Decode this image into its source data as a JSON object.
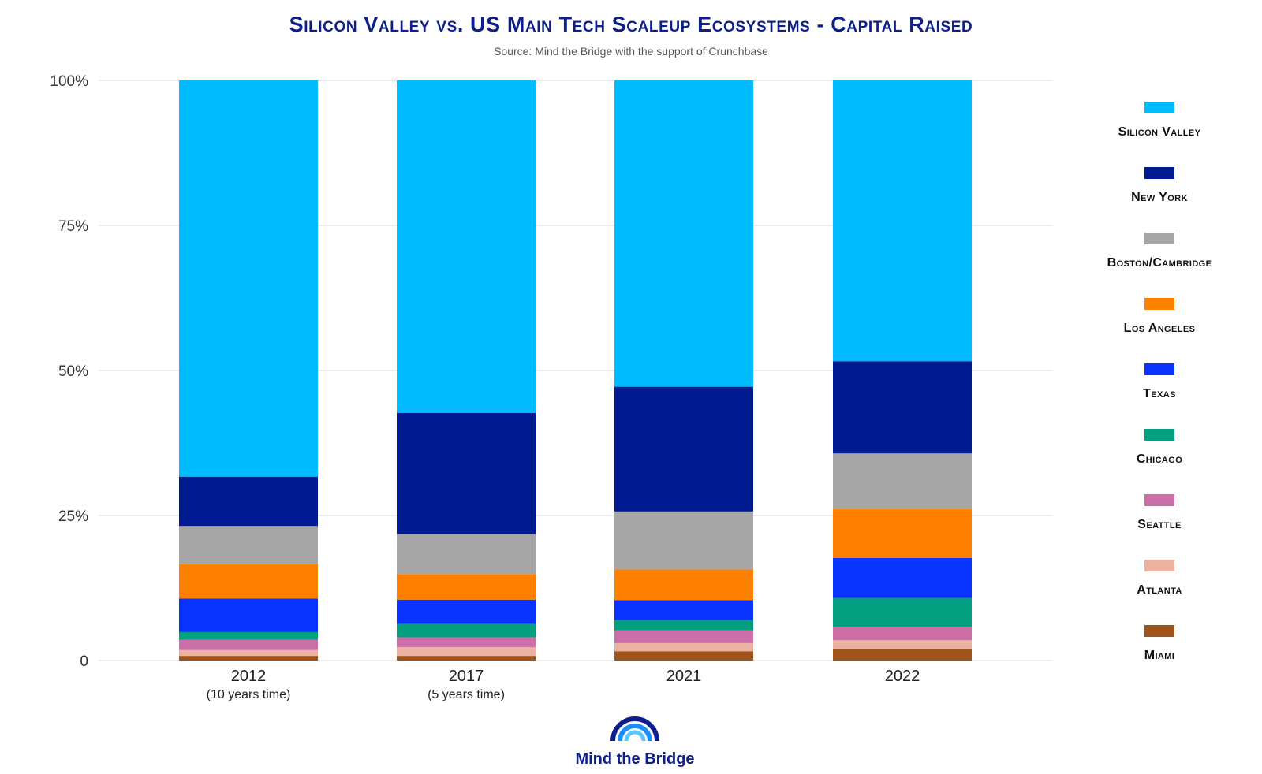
{
  "chart_data": {
    "type": "bar",
    "stacked": true,
    "title": "Silicon Valley vs. US Main Tech Scaleup Ecosystems - Capital Raised",
    "subtitle": "Source: Mind the Bridge with the support of Crunchbase",
    "categories": [
      {
        "label": "2012",
        "sublabel": "(10 years time)"
      },
      {
        "label": "2017",
        "sublabel": "(5 years time)"
      },
      {
        "label": "2021",
        "sublabel": ""
      },
      {
        "label": "2022",
        "sublabel": ""
      }
    ],
    "yticks": [
      "0",
      "25%",
      "50%",
      "75%",
      "100%"
    ],
    "ylim": [
      0,
      100
    ],
    "grid": true,
    "legend_position": "right",
    "series": [
      {
        "name": "Miami",
        "color": "#a0531d",
        "values": [
          0.8,
          0.8,
          1.6,
          2.0
        ]
      },
      {
        "name": "Atlanta",
        "color": "#ebb1a1",
        "values": [
          1.0,
          1.5,
          1.4,
          1.5
        ]
      },
      {
        "name": "Seattle",
        "color": "#cc6fa8",
        "values": [
          1.8,
          1.7,
          2.2,
          2.3
        ]
      },
      {
        "name": "Chicago",
        "color": "#03a07f",
        "values": [
          1.3,
          2.3,
          1.8,
          5.0
        ]
      },
      {
        "name": "Texas",
        "color": "#0a33ff",
        "values": [
          5.8,
          4.2,
          3.4,
          6.9
        ]
      },
      {
        "name": "Los Angeles",
        "color": "#ff8000",
        "values": [
          5.9,
          4.4,
          5.3,
          8.4
        ]
      },
      {
        "name": "Boston/Cambridge",
        "color": "#a6a6a6",
        "values": [
          6.6,
          6.9,
          10.0,
          9.6
        ]
      },
      {
        "name": "New York",
        "color": "#001b8f",
        "values": [
          8.5,
          20.9,
          21.5,
          15.9
        ]
      },
      {
        "name": "Silicon Valley",
        "color": "#00bbff",
        "values": [
          68.3,
          57.3,
          52.8,
          48.4
        ]
      }
    ]
  },
  "legend_order": [
    "Silicon Valley",
    "New York",
    "Boston/Cambridge",
    "Los Angeles",
    "Texas",
    "Chicago",
    "Seattle",
    "Atlanta",
    "Miami"
  ],
  "logo": {
    "text": "Mind the Bridge",
    "color": "#0d1f8c"
  }
}
